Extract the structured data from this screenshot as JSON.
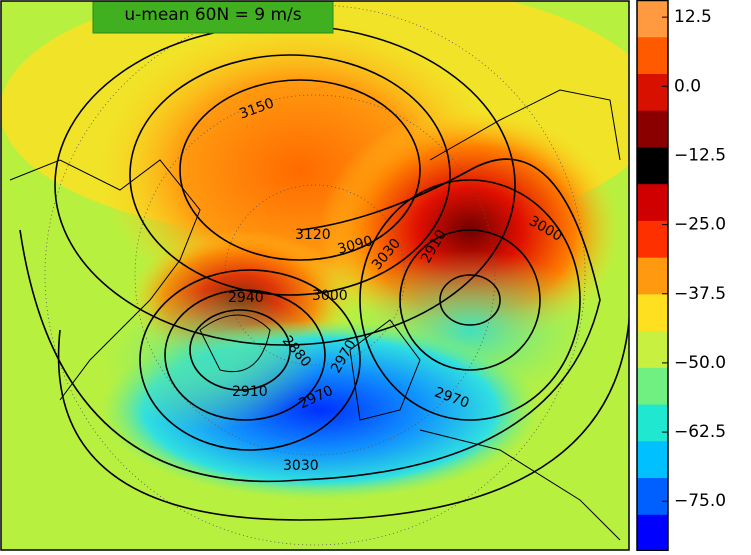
{
  "annotation": "u-mean 60N = 9 m/s",
  "colorbar": {
    "lim": [
      -84,
      15.6
    ],
    "colormap": [
      "#0000ff",
      "#0060ff",
      "#00c0ff",
      "#20e8d0",
      "#70f080",
      "#c8f040",
      "#ffe020",
      "#ff9a10",
      "#ff3000",
      "#d00000",
      "#000000",
      "#8a0000",
      "#d81000",
      "#ff5a00",
      "#ff9a40"
    ],
    "ticks": [
      12.5,
      {
        "value": 0,
        "label": "0.0"
      },
      {
        "value": -12.5,
        "label": "−12.5"
      },
      {
        "value": -25,
        "label": "−25.0"
      },
      {
        "value": -37.5,
        "label": "−37.5"
      },
      {
        "value": -50,
        "label": "−50.0"
      },
      {
        "value": -62.5,
        "label": "−62.5"
      },
      {
        "value": -75,
        "label": "−75.0"
      }
    ]
  },
  "contours": {
    "labels": [
      "3150",
      "3120",
      "3090",
      "3030",
      "3000",
      "2880",
      "2910",
      "2970",
      "2970",
      "3030",
      "3000",
      "2910",
      "2970",
      "2940"
    ]
  }
}
